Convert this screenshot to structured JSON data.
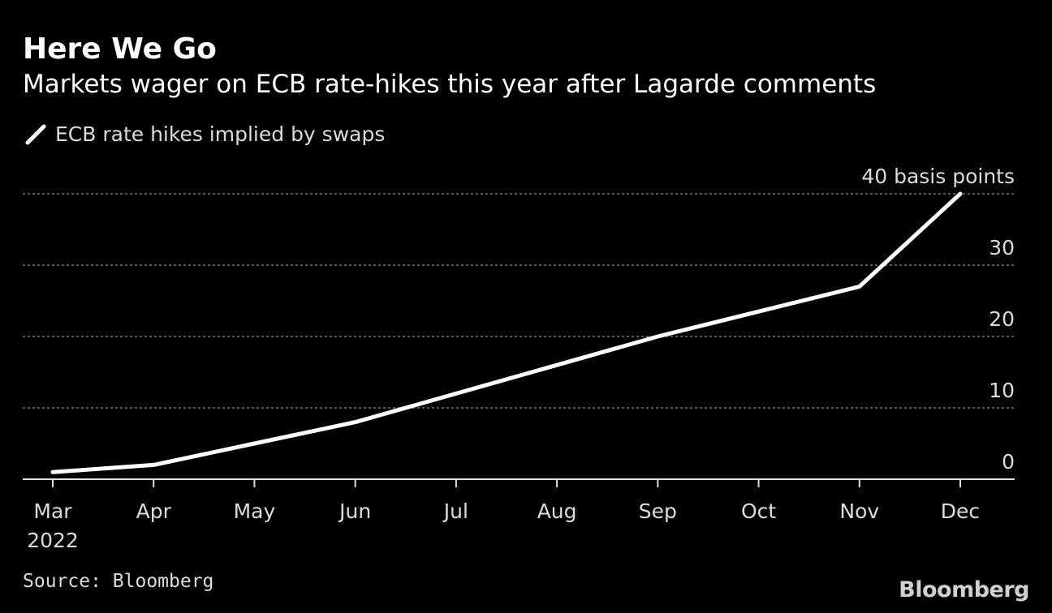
{
  "title": "Here We Go",
  "subtitle": "Markets wager on ECB rate-hikes this year after Lagarde comments",
  "source": "Source: Bloomberg",
  "logo_text": "Bloomberg",
  "colors": {
    "background": "#000000",
    "line": "#ffffff",
    "grid": "#777777",
    "text": "#dcdcdc"
  },
  "chart_data": {
    "type": "line",
    "x": [
      "Mar",
      "Apr",
      "May",
      "Jun",
      "Jul",
      "Aug",
      "Sep",
      "Oct",
      "Nov",
      "Dec"
    ],
    "x_sub_label": "2022",
    "series": [
      {
        "name": "ECB rate hikes implied by swaps",
        "values": [
          1,
          2,
          5,
          8,
          12,
          16,
          20,
          23.5,
          27,
          40
        ]
      }
    ],
    "ylim": [
      0,
      40
    ],
    "yticks": [
      0,
      10,
      20,
      30,
      40
    ],
    "ytick_labels": [
      "0",
      "10",
      "20",
      "30",
      "40 basis points"
    ],
    "grid": true,
    "legend_position": "top-left",
    "y_axis_side": "right"
  }
}
